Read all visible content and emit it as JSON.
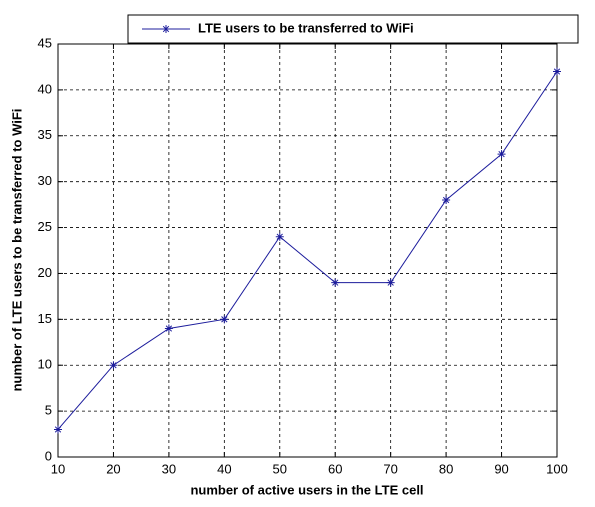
{
  "chart_data": {
    "type": "line",
    "xlabel": "number of active users in the LTE cell",
    "ylabel": "number of LTE users to be transferred to WiFi",
    "x": [
      10,
      20,
      30,
      40,
      50,
      60,
      70,
      80,
      90,
      100
    ],
    "series": [
      {
        "name": "LTE users to be transferred to WiFi",
        "color": "#1c1c9c",
        "values": [
          3,
          10,
          14,
          15,
          24,
          19,
          19,
          28,
          33,
          42
        ]
      }
    ],
    "xlim": [
      10,
      100
    ],
    "xticks": [
      10,
      20,
      30,
      40,
      50,
      60,
      70,
      80,
      90,
      100
    ],
    "ylim": [
      0,
      45
    ],
    "yticks": [
      0,
      5,
      10,
      15,
      20,
      25,
      30,
      35,
      40,
      45
    ],
    "grid": true,
    "legend": "top"
  }
}
